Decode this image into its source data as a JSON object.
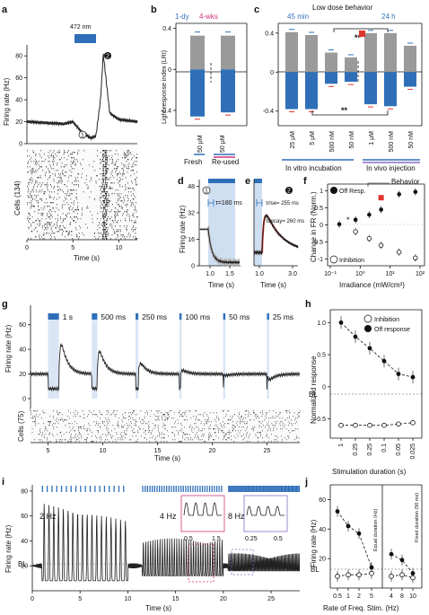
{
  "colors": {
    "blue": "#2f6fb8",
    "gray": "#9a9a9a",
    "red": "#e0342c",
    "shade": "#cfdff2",
    "pink": "#d0357a",
    "purple": "#8a6bc8"
  },
  "labels": {
    "a": {
      "panel": "a",
      "stim": "472 nm",
      "ylabel": "Firing rate (Hz)",
      "cells": "Cells (134)",
      "xlabel": "Time (s)",
      "m1": "1",
      "m2": "2",
      "yt": [
        "0",
        "20",
        "40",
        "60",
        "80"
      ],
      "xt": [
        "0",
        "5",
        "10"
      ]
    },
    "b": {
      "panel": "b",
      "t1": "1-dy",
      "t2": "4-wks",
      "ylabel": "Light response index (LRI)",
      "yt": [
        "0.4",
        "0",
        "-0.4"
      ],
      "cat": [
        "50 μM",
        "50 μM"
      ],
      "g1": "Fresh",
      "g2": "Re-used"
    },
    "c": {
      "panel": "c",
      "title": "Low dose behavior",
      "t1": "45 min",
      "t2": "24 h",
      "yt": [
        "0.4",
        "0",
        "-0.4"
      ],
      "cat": [
        "25 μM",
        "5 μM",
        "500 nM",
        "50 nM",
        "1 μM",
        "500 nM",
        "50 nM"
      ],
      "g1": "In vitro incubation",
      "g2": "In vivo injection",
      "sig1": "**",
      "sig2": "**"
    },
    "d": {
      "panel": "d",
      "ylabel": "Firing rate (Hz)",
      "xlabel": "Time (s)",
      "tau": "τ=180 ms",
      "m": "1",
      "yt": [
        "48",
        "32",
        "16",
        "0"
      ],
      "xt": [
        "1.0",
        "1.5"
      ]
    },
    "e": {
      "panel": "e",
      "xlabel": "Time (s)",
      "m": "2",
      "rise": "τrise= 255 ms",
      "decay": "τdecay= 260 ms",
      "xt": [
        "1.0",
        "3.0"
      ]
    },
    "f": {
      "panel": "f",
      "ylabel": "Change in FR (Norm.)",
      "xlabel": "Irradiance (mW/cm²)",
      "off": "Off Resp.",
      "inh": "Inhibition",
      "beh": "Behavior",
      "star": "*",
      "yt": [
        "1",
        "0.5",
        "0",
        "-0.5",
        "-1"
      ],
      "xt": [
        "10⁻¹",
        "10⁰",
        "10¹",
        "10²"
      ]
    },
    "g": {
      "panel": "g",
      "ylabel": "Firing rate (Hz)",
      "cells": "Cells (75)",
      "xlabel": "Time (s)",
      "durs": [
        "1 s",
        "500 ms",
        "250 ms",
        "100 ms",
        "50 ms",
        "25 ms"
      ],
      "yt": [
        "0",
        "20",
        "40",
        "60"
      ],
      "xt": [
        "5",
        "10",
        "15",
        "20",
        "25"
      ]
    },
    "h": {
      "panel": "h",
      "ylabel": "Normalized response",
      "xlabel": "Stimulation duration (s)",
      "bl": "BL",
      "l1": "Inhibition",
      "l2": "Off response",
      "yt": [
        "1.0",
        "0.5",
        "0",
        "-0.5"
      ],
      "xt": [
        "1",
        "0.25",
        "0.25",
        "0.1",
        "0.05",
        "0.025"
      ]
    },
    "i": {
      "panel": "i",
      "ylabel": "Firing rate (Hz)",
      "xlabel": "Time (s)",
      "f2": "2 Hz",
      "f4": "4 Hz",
      "f8": "8 Hz",
      "bl": "BL",
      "yt": [
        "80",
        "60",
        "40",
        "20"
      ],
      "xt": [
        "0",
        "5",
        "10",
        "15",
        "20",
        "25"
      ],
      "i1x": [
        "0.5",
        "1.5"
      ],
      "i2x": [
        "0.25",
        "0.5"
      ]
    },
    "j": {
      "panel": "j",
      "ylabel": "Firing rate (Hz)",
      "xlabel": "Rate of Freq. Stim. (Hz)",
      "bl": "BL",
      "eq": "Equal duration (Hz)",
      "fx": "Fixed duration (50 ms)",
      "yt": [
        "60",
        "40",
        "20"
      ],
      "xt": [
        "0.5",
        "1",
        "2",
        "5",
        "4",
        "8",
        "10"
      ]
    }
  },
  "chart_data": [
    {
      "panel": "b",
      "type": "bar",
      "categories": [
        "50 μM",
        "50 μM"
      ],
      "groups": [
        "Fresh",
        "Re-used"
      ],
      "series": [
        {
          "name": "1-dy",
          "values": [
            0.33,
            0.33
          ]
        },
        {
          "name": "4-wks",
          "values": [
            -0.46,
            -0.42
          ]
        }
      ],
      "ylim": [
        -0.55,
        0.45
      ]
    },
    {
      "panel": "c",
      "type": "bar",
      "categories": [
        "25 μM",
        "5 μM",
        "500 nM",
        "50 nM",
        "1 μM",
        "500 nM",
        "50 nM"
      ],
      "series": [
        {
          "name": "45 min / 24 h",
          "values": [
            0.41,
            0.38,
            0.2,
            0.15,
            0.4,
            0.4,
            0.27
          ]
        },
        {
          "values": [
            -0.38,
            -0.38,
            -0.12,
            -0.1,
            -0.33,
            -0.35,
            -0.15
          ]
        }
      ],
      "ylim": [
        -0.55,
        0.5
      ],
      "behavior_marker_category": "1 μM"
    },
    {
      "panel": "f",
      "type": "scatter",
      "xscale": "log",
      "xlim": [
        0.1,
        100
      ],
      "ylim": [
        -1.2,
        1.2
      ],
      "series": [
        {
          "name": "Off Resp.",
          "x": [
            0.2,
            0.7,
            2,
            5,
            20,
            70
          ],
          "y": [
            0.02,
            0.15,
            0.3,
            0.45,
            0.9,
            0.97
          ]
        },
        {
          "name": "Inhibition",
          "x": [
            0.7,
            2,
            5,
            20,
            70
          ],
          "y": [
            -0.2,
            -0.4,
            -0.6,
            -0.8,
            -0.97
          ]
        },
        {
          "name": "Behavior",
          "x": [
            5
          ],
          "y": [
            0.8
          ]
        }
      ]
    },
    {
      "panel": "h",
      "type": "line",
      "categories": [
        "1",
        "0.25",
        "0.25",
        "0.1",
        "0.05",
        "0.025"
      ],
      "series": [
        {
          "name": "Off response",
          "values": [
            1.0,
            0.78,
            0.6,
            0.4,
            0.2,
            0.15
          ]
        },
        {
          "name": "Inhibition",
          "values": [
            -0.6,
            -0.6,
            -0.6,
            -0.6,
            -0.58,
            -0.56
          ]
        }
      ],
      "ylim": [
        -0.8,
        1.2
      ]
    },
    {
      "panel": "j",
      "type": "line",
      "categories": [
        "0.5",
        "1",
        "2",
        "5",
        "4",
        "8",
        "10"
      ],
      "series": [
        {
          "name": "Off response",
          "values": [
            52,
            42,
            37,
            14,
            23,
            19,
            10
          ]
        },
        {
          "name": "Inhibition",
          "values": [
            8,
            9,
            9,
            10,
            8,
            9,
            7
          ]
        }
      ],
      "ylim": [
        0,
        70
      ],
      "baseline": 12
    },
    {
      "panel": "a",
      "type": "line",
      "x": [
        0,
        2,
        4,
        5,
        6,
        7,
        7.5,
        8,
        8.3,
        9,
        10,
        12
      ],
      "y": [
        20,
        19,
        18,
        20,
        10,
        5,
        7,
        40,
        82,
        28,
        22,
        20
      ],
      "xlim": [
        0,
        12
      ],
      "ylim": [
        0,
        90
      ]
    }
  ]
}
